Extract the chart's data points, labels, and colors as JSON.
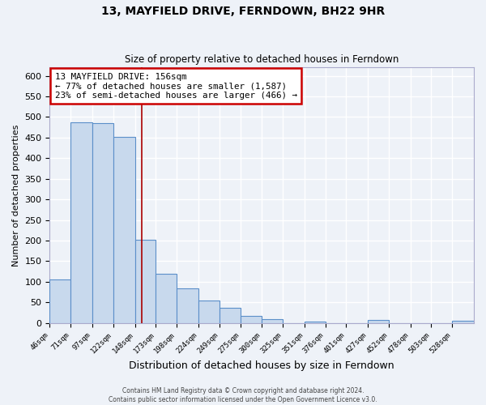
{
  "title": "13, MAYFIELD DRIVE, FERNDOWN, BH22 9HR",
  "subtitle": "Size of property relative to detached houses in Ferndown",
  "xlabel": "Distribution of detached houses by size in Ferndown",
  "ylabel": "Number of detached properties",
  "bar_edges": [
    46,
    71,
    97,
    122,
    148,
    173,
    198,
    224,
    249,
    275,
    300,
    325,
    351,
    376,
    401,
    427,
    452,
    478,
    503,
    528,
    554
  ],
  "bar_heights": [
    105,
    487,
    485,
    452,
    202,
    120,
    83,
    55,
    37,
    17,
    10,
    0,
    3,
    0,
    0,
    8,
    0,
    0,
    0,
    5
  ],
  "bar_color": "#c8d9ed",
  "bar_edge_color": "#5b8fc9",
  "vline_x": 156,
  "vline_color": "#aa0000",
  "annotation_line1": "13 MAYFIELD DRIVE: 156sqm",
  "annotation_line2": "← 77% of detached houses are smaller (1,587)",
  "annotation_line3": "23% of semi-detached houses are larger (466) →",
  "annotation_box_color": "#cc0000",
  "ylim": [
    0,
    620
  ],
  "yticks": [
    0,
    50,
    100,
    150,
    200,
    250,
    300,
    350,
    400,
    450,
    500,
    550,
    600
  ],
  "background_color": "#eef2f8",
  "grid_color": "#ffffff",
  "footer_line1": "Contains HM Land Registry data © Crown copyright and database right 2024.",
  "footer_line2": "Contains public sector information licensed under the Open Government Licence v3.0."
}
